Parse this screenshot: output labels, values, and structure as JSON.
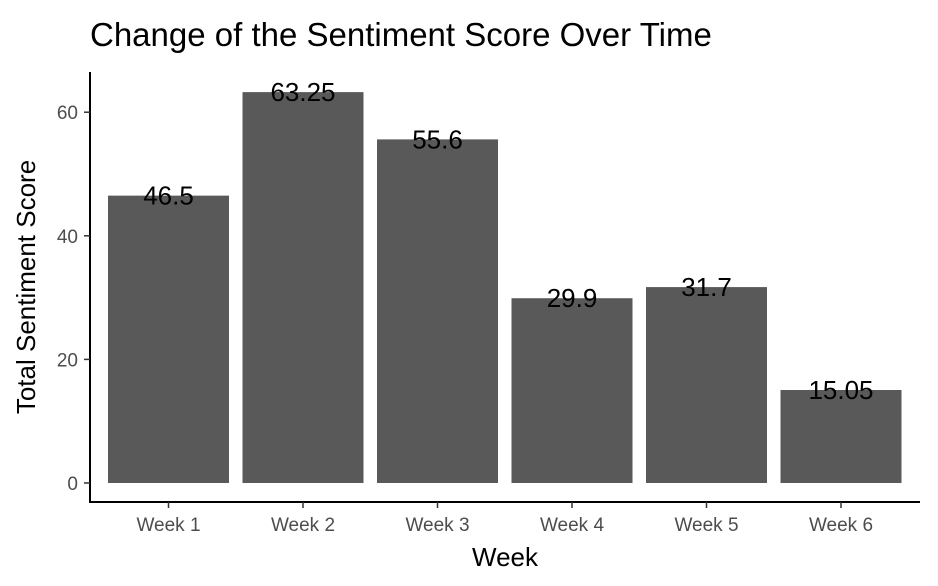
{
  "chart_data": {
    "type": "bar",
    "title": "Change of the Sentiment Score Over Time",
    "xlabel": "Week",
    "ylabel": "Total Sentiment Score",
    "categories": [
      "Week 1",
      "Week 2",
      "Week 3",
      "Week 4",
      "Week 5",
      "Week 6"
    ],
    "values": [
      46.5,
      63.25,
      55.6,
      29.9,
      31.7,
      15.05
    ],
    "data_labels": [
      "46.5",
      "63.25",
      "55.6",
      "29.9",
      "31.7",
      "15.05"
    ],
    "yticks": [
      0,
      20,
      40,
      60
    ],
    "ylim": [
      0,
      66.4
    ],
    "grid": false,
    "bar_color": "#595959"
  }
}
